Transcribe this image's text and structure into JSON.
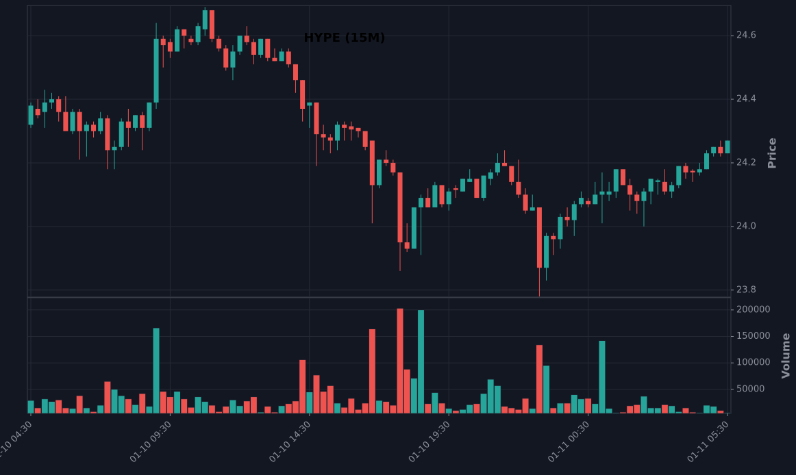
{
  "chart_data": [
    {
      "type": "candlestick",
      "title": "HYPE (15M)",
      "ylabel": "Price",
      "open": [
        24.32,
        24.37,
        24.36,
        24.39,
        24.4,
        24.36,
        24.3,
        24.36,
        24.3,
        24.32,
        24.3,
        24.34,
        24.24,
        24.25,
        24.33,
        24.31,
        24.35,
        24.31,
        24.39,
        24.59,
        24.58,
        24.55,
        24.62,
        24.59,
        24.58,
        24.62,
        24.68,
        24.59,
        24.56,
        24.5,
        24.55,
        24.6,
        24.58,
        24.54,
        24.59,
        24.53,
        24.52,
        24.55,
        24.51,
        24.46,
        24.38,
        24.39,
        24.29,
        24.28,
        24.27,
        24.32,
        24.315,
        24.31,
        24.3,
        24.27,
        24.13,
        24.21,
        24.2,
        24.17,
        23.95,
        23.93,
        24.06,
        24.09,
        24.06,
        24.13,
        24.07,
        24.12,
        24.11,
        24.14,
        24.15,
        24.09,
        24.15,
        24.17,
        24.2,
        24.19,
        24.14,
        24.1,
        24.05,
        24.06,
        23.87,
        23.97,
        23.96,
        24.03,
        24.02,
        24.07,
        24.08,
        24.07,
        24.1,
        24.1,
        24.11,
        24.18,
        24.13,
        24.1,
        24.08,
        24.11,
        24.14,
        24.14,
        24.11,
        24.13,
        24.19,
        24.175,
        24.17,
        24.18,
        24.23,
        24.25,
        24.23
      ],
      "high": [
        24.39,
        24.4,
        24.43,
        24.42,
        24.41,
        24.41,
        24.37,
        24.37,
        24.33,
        24.33,
        24.36,
        24.35,
        24.27,
        24.34,
        24.37,
        24.35,
        24.36,
        24.39,
        24.64,
        24.6,
        24.59,
        24.63,
        24.62,
        24.6,
        24.64,
        24.69,
        24.68,
        24.6,
        24.57,
        24.57,
        24.6,
        24.63,
        24.59,
        24.59,
        24.59,
        24.56,
        24.56,
        24.56,
        24.51,
        24.46,
        24.39,
        24.39,
        24.32,
        24.29,
        24.33,
        24.33,
        24.33,
        24.31,
        24.3,
        24.27,
        24.21,
        24.24,
        24.21,
        24.17,
        24.01,
        24.06,
        24.1,
        24.12,
        24.14,
        24.13,
        24.12,
        24.13,
        24.15,
        24.18,
        24.15,
        24.16,
        24.18,
        24.23,
        24.24,
        24.19,
        24.21,
        24.12,
        24.1,
        24.06,
        23.98,
        23.98,
        24.04,
        24.06,
        24.08,
        24.11,
        24.09,
        24.14,
        24.17,
        24.14,
        24.18,
        24.18,
        24.15,
        24.11,
        24.12,
        24.15,
        24.15,
        24.18,
        24.14,
        24.19,
        24.2,
        24.18,
        24.2,
        24.24,
        24.25,
        24.27,
        24.27
      ],
      "low": [
        24.31,
        24.34,
        24.31,
        24.37,
        24.33,
        24.3,
        24.29,
        24.21,
        24.22,
        24.28,
        24.29,
        24.18,
        24.18,
        24.24,
        24.25,
        24.3,
        24.24,
        24.3,
        24.37,
        24.5,
        24.53,
        24.55,
        24.56,
        24.57,
        24.57,
        24.6,
        24.58,
        24.55,
        24.49,
        24.46,
        24.54,
        24.57,
        24.51,
        24.53,
        24.52,
        24.52,
        24.52,
        24.5,
        24.42,
        24.33,
        24.31,
        24.19,
        24.24,
        24.23,
        24.24,
        24.27,
        24.27,
        24.28,
        24.24,
        24.01,
        24.12,
        24.19,
        24.16,
        23.86,
        23.92,
        23.93,
        23.91,
        24.06,
        24.06,
        24.06,
        24.05,
        24.09,
        24.11,
        24.14,
        24.09,
        24.08,
        24.13,
        24.16,
        24.19,
        24.13,
        24.09,
        24.04,
        24.05,
        23.78,
        23.83,
        23.91,
        23.93,
        24.0,
        23.97,
        24.06,
        24.06,
        24.07,
        24.01,
        24.08,
        24.09,
        24.13,
        24.05,
        24.04,
        24.0,
        24.07,
        24.1,
        24.1,
        24.09,
        24.12,
        24.15,
        24.14,
        24.16,
        24.18,
        24.22,
        24.22,
        24.23
      ],
      "close": [
        24.38,
        24.35,
        24.39,
        24.4,
        24.36,
        24.3,
        24.36,
        24.3,
        24.32,
        24.3,
        24.34,
        24.24,
        24.25,
        24.33,
        24.31,
        24.35,
        24.31,
        24.39,
        24.59,
        24.57,
        24.55,
        24.62,
        24.6,
        24.58,
        24.63,
        24.68,
        24.59,
        24.56,
        24.5,
        24.55,
        24.6,
        24.58,
        24.54,
        24.59,
        24.53,
        24.52,
        24.55,
        24.51,
        24.46,
        24.37,
        24.39,
        24.29,
        24.28,
        24.27,
        24.32,
        24.31,
        24.305,
        24.3,
        24.25,
        24.13,
        24.21,
        24.2,
        24.17,
        23.95,
        23.93,
        24.06,
        24.09,
        24.06,
        24.13,
        24.07,
        24.11,
        24.115,
        24.15,
        24.15,
        24.09,
        24.16,
        24.17,
        24.2,
        24.19,
        24.14,
        24.1,
        24.05,
        24.06,
        23.87,
        23.97,
        23.96,
        24.03,
        24.02,
        24.07,
        24.09,
        24.07,
        24.1,
        24.11,
        24.11,
        24.18,
        24.13,
        24.1,
        24.08,
        24.11,
        24.15,
        24.145,
        24.11,
        24.13,
        24.19,
        24.17,
        24.17,
        24.18,
        24.23,
        24.25,
        24.23,
        24.27
      ],
      "ylim": [
        23.778,
        24.695
      ],
      "yticks": [
        23.8,
        {
          "value": 24,
          "label": "24.0"
        },
        24.2,
        24.4,
        24.6
      ],
      "up_color": "#26a69a",
      "down_color": "#ef5350",
      "grid": true
    },
    {
      "type": "bar",
      "ylabel": "Volume",
      "categories": [
        "01-10 04:30",
        null,
        null,
        null,
        null,
        null,
        null,
        null,
        null,
        null,
        null,
        null,
        null,
        null,
        null,
        null,
        null,
        null,
        null,
        null,
        "01-10 09:30",
        null,
        null,
        null,
        null,
        null,
        null,
        null,
        null,
        null,
        null,
        null,
        null,
        null,
        null,
        null,
        null,
        null,
        null,
        null,
        "01-10 14:30",
        null,
        null,
        null,
        null,
        null,
        null,
        null,
        null,
        null,
        null,
        null,
        null,
        null,
        null,
        null,
        null,
        null,
        null,
        null,
        "01-10 19:30",
        null,
        null,
        null,
        null,
        null,
        null,
        null,
        null,
        null,
        null,
        null,
        null,
        null,
        null,
        null,
        null,
        null,
        null,
        null,
        "01-11 00:30",
        null,
        null,
        null,
        null,
        null,
        null,
        null,
        null,
        null,
        null,
        null,
        null,
        null,
        null,
        null,
        null,
        null,
        null,
        null,
        "01-11 05:30"
      ],
      "values": [
        29000,
        15000,
        32000,
        27000,
        30000,
        15000,
        14000,
        38000,
        15000,
        8000,
        20000,
        65000,
        50000,
        38000,
        32000,
        21000,
        42000,
        18000,
        166000,
        46000,
        36000,
        46000,
        32000,
        16000,
        36000,
        27000,
        20000,
        8000,
        18000,
        30000,
        19000,
        28000,
        36000,
        7000,
        18000,
        7000,
        19000,
        23000,
        28000,
        106000,
        45000,
        77000,
        46000,
        57000,
        24000,
        16000,
        33000,
        12000,
        24000,
        164000,
        29000,
        27000,
        20000,
        203000,
        88000,
        71000,
        200000,
        23000,
        44000,
        24000,
        14000,
        10000,
        12000,
        21000,
        23000,
        42000,
        69000,
        57000,
        18000,
        15000,
        12000,
        33000,
        14000,
        134000,
        95000,
        15000,
        24000,
        24000,
        40000,
        32000,
        33000,
        23000,
        142000,
        14000,
        6000,
        7000,
        19000,
        21000,
        37000,
        15000,
        15000,
        21000,
        19000,
        8000,
        15000,
        7000,
        6000,
        20000,
        18000,
        10000,
        6000
      ],
      "ylim": [
        4700,
        223000
      ],
      "yticks": [
        50000,
        100000,
        150000,
        200000
      ],
      "grid": true
    }
  ]
}
